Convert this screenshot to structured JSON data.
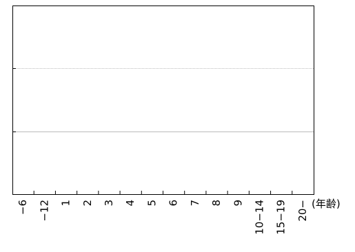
{
  "chart_data": {
    "type": "bar",
    "categories": [
      "−6",
      "−12",
      "1",
      "2",
      "3",
      "4",
      "5",
      "6",
      "7",
      "8",
      "9",
      "10−14",
      "15−19",
      "20−"
    ],
    "x_label": "(年齢)"
  }
}
